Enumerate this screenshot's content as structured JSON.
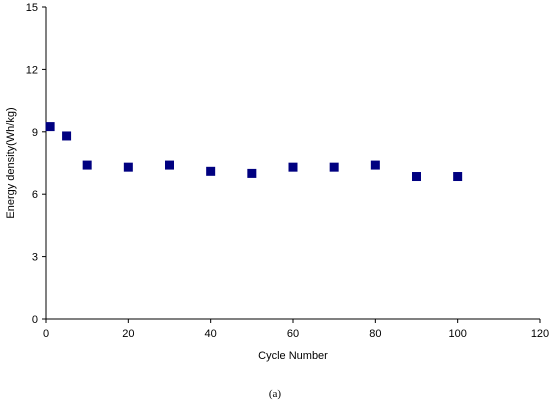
{
  "chart_data": {
    "type": "scatter",
    "title": "",
    "xlabel": "Cycle Number",
    "ylabel": "Energy density(Wh/kg)",
    "xlim": [
      0,
      120
    ],
    "ylim": [
      0,
      15
    ],
    "xticks": [
      0,
      20,
      40,
      60,
      80,
      100,
      120
    ],
    "yticks": [
      0,
      3,
      6,
      9,
      12,
      15
    ],
    "grid": false,
    "legend": "none",
    "marker": "square",
    "marker_color": "#000080",
    "series": [
      {
        "x": [
          1,
          5,
          10,
          20,
          30,
          40,
          50,
          60,
          70,
          80,
          90,
          100
        ],
        "y": [
          9.25,
          8.8,
          7.4,
          7.3,
          7.4,
          7.1,
          7.0,
          7.3,
          7.3,
          7.4,
          6.85,
          6.85
        ]
      }
    ]
  },
  "caption": "(a)"
}
